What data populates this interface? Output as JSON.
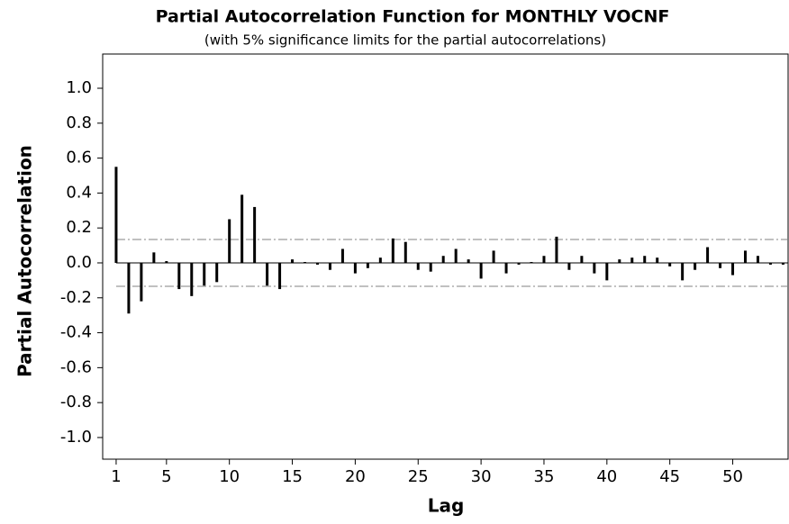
{
  "chart_data": {
    "type": "pacf",
    "title": "Partial Autocorrelation Function for MONTHLY VOCNF",
    "subtitle": "(with 5% significance limits for the partial autocorrelations)",
    "x_label": "Lag",
    "y_label": "Partial Autocorrelation",
    "x": [
      1,
      2,
      3,
      4,
      5,
      6,
      7,
      8,
      9,
      10,
      11,
      12,
      13,
      14,
      15,
      16,
      17,
      18,
      19,
      20,
      21,
      22,
      23,
      24,
      25,
      26,
      27,
      28,
      29,
      30,
      31,
      32,
      33,
      34,
      35,
      36,
      37,
      38,
      39,
      40,
      41,
      42,
      43,
      44,
      45,
      46,
      47,
      48,
      49,
      50,
      51,
      52,
      53,
      54
    ],
    "values": [
      0.55,
      -0.29,
      -0.22,
      0.06,
      0.01,
      -0.15,
      -0.19,
      -0.13,
      -0.11,
      0.25,
      0.39,
      0.32,
      -0.13,
      -0.15,
      0.02,
      0.005,
      -0.01,
      -0.04,
      0.08,
      -0.06,
      -0.03,
      0.03,
      0.14,
      0.12,
      -0.04,
      -0.05,
      0.04,
      0.08,
      0.02,
      -0.09,
      0.07,
      -0.06,
      -0.01,
      0.005,
      0.04,
      0.15,
      -0.04,
      0.04,
      -0.06,
      -0.1,
      0.02,
      0.03,
      0.04,
      0.03,
      -0.02,
      -0.1,
      -0.04,
      0.09,
      -0.03,
      -0.07,
      0.07,
      0.04,
      -0.01,
      -0.01
    ],
    "color": "#000000",
    "upper_limit": 0.134,
    "lower_limit": -0.134,
    "limit_color": "#808080",
    "xlim": [
      -0.07,
      54.4
    ],
    "ylim": [
      -1.124,
      1.196
    ],
    "xticks": [
      1,
      5,
      10,
      15,
      20,
      25,
      30,
      35,
      40,
      45,
      50
    ],
    "yticks": [
      {
        "value": 1,
        "label": "1.0"
      },
      0.8,
      0.6,
      0.4,
      0.2,
      {
        "value": 0,
        "label": "0.0"
      },
      -0.2,
      -0.4,
      -0.6,
      -0.8,
      {
        "value": -1,
        "label": "-1.0"
      }
    ]
  }
}
